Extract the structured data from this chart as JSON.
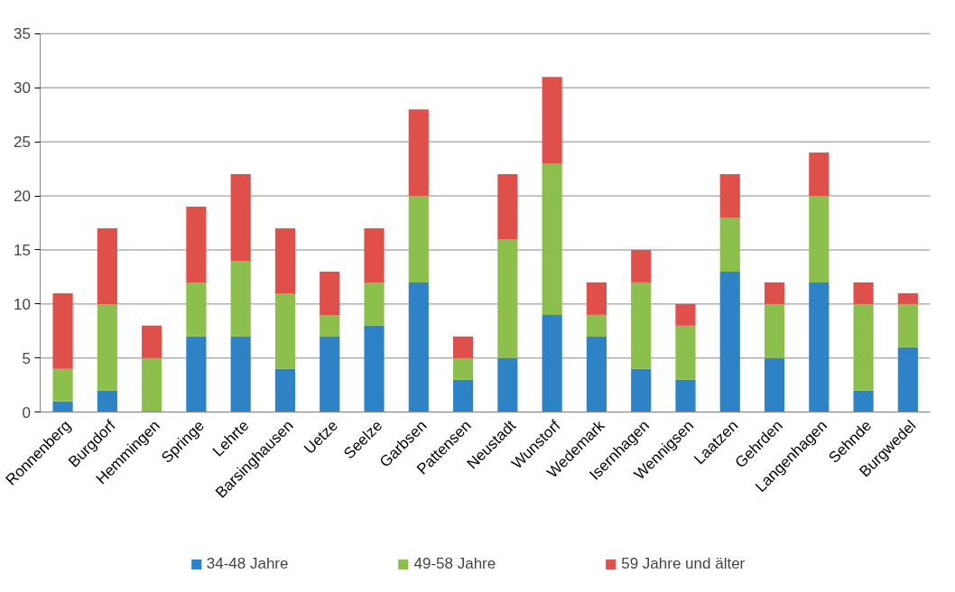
{
  "chart_data": {
    "type": "bar",
    "stacked": true,
    "categories": [
      "Ronnenberg",
      "Burgdorf",
      "Hemmingen",
      "Springe",
      "Lehrte",
      "Barsinghausen",
      "Uetze",
      "Seelze",
      "Garbsen",
      "Pattensen",
      "Neustadt",
      "Wunstorf",
      "Wedemark",
      "Isernhagen",
      "Wennigsen",
      "Laatzen",
      "Gehrden",
      "Langenhagen",
      "Sehnde",
      "Burgwedel"
    ],
    "series": [
      {
        "name": "34-48 Jahre",
        "color": "#2e83c6",
        "values": [
          1,
          2,
          0,
          7,
          7,
          4,
          7,
          8,
          12,
          3,
          5,
          9,
          7,
          4,
          3,
          13,
          5,
          12,
          2,
          6
        ]
      },
      {
        "name": "49-58 Jahre",
        "color": "#8dbf4d",
        "values": [
          3,
          8,
          5,
          5,
          7,
          7,
          2,
          4,
          8,
          2,
          11,
          14,
          2,
          8,
          5,
          5,
          5,
          8,
          8,
          4
        ]
      },
      {
        "name": "59 Jahre und älter",
        "color": "#e0504b",
        "values": [
          7,
          7,
          3,
          7,
          8,
          6,
          4,
          5,
          8,
          2,
          6,
          8,
          3,
          3,
          2,
          4,
          2,
          4,
          2,
          1
        ]
      }
    ],
    "ylim": [
      0,
      35
    ],
    "yticks": [
      0,
      5,
      10,
      15,
      20,
      25,
      30,
      35
    ],
    "grid": "y",
    "legend": "bottom"
  }
}
